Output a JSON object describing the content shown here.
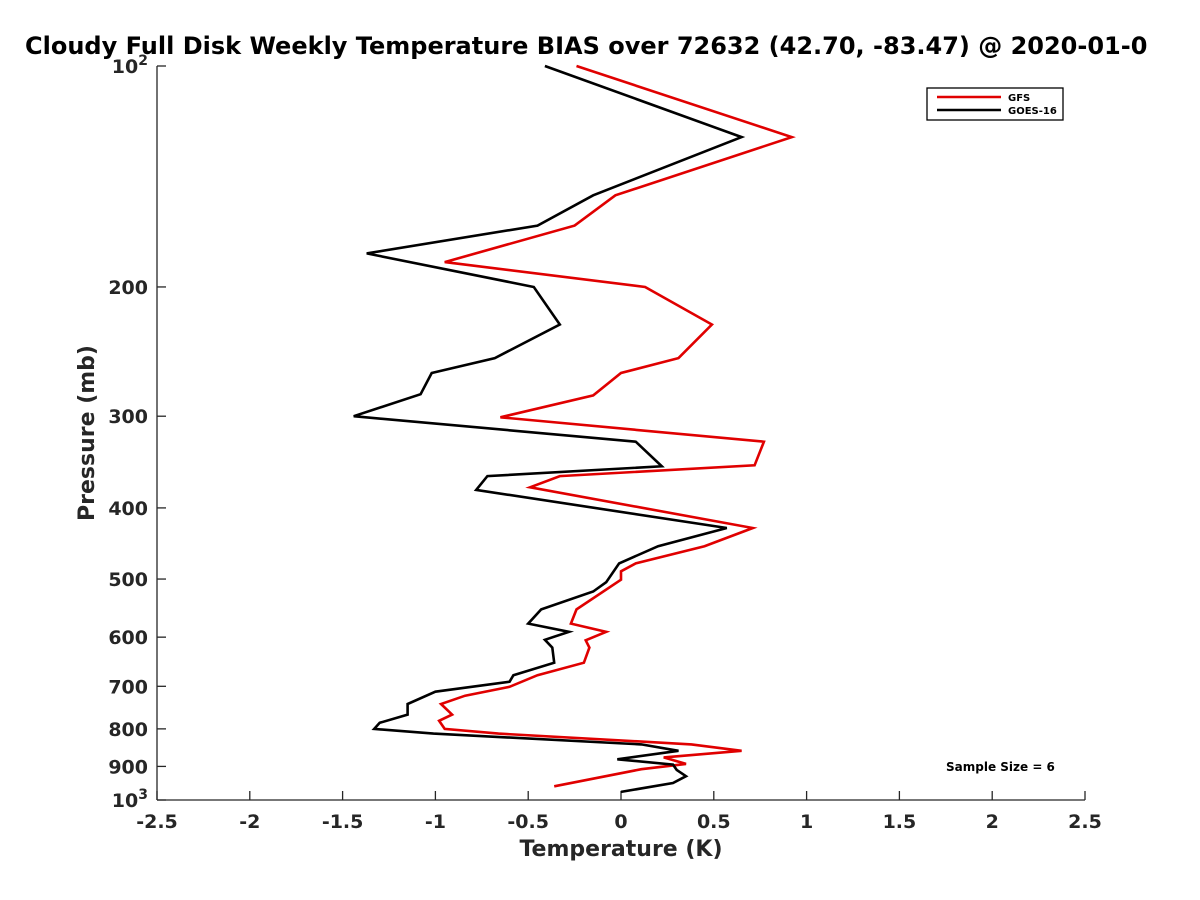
{
  "chart_data": {
    "type": "line",
    "title": "Cloudy Full Disk Weekly Temperature BIAS over 72632 (42.70, -83.47) @ 2020-01-0",
    "xlabel": "Temperature (K)",
    "ylabel": "Pressure (mb)",
    "xlim": [
      -2.5,
      2.5
    ],
    "ylim": [
      100,
      1000
    ],
    "y_scale": "log",
    "y_reversed": true,
    "grid": false,
    "legend_position": "top-right",
    "x_ticks": [
      {
        "value": -2.5,
        "label": "-2.5"
      },
      {
        "value": -2,
        "label": "-2"
      },
      {
        "value": -1.5,
        "label": "-1.5"
      },
      {
        "value": -1,
        "label": "-1"
      },
      {
        "value": -0.5,
        "label": "-0.5"
      },
      {
        "value": 0,
        "label": "0"
      },
      {
        "value": 0.5,
        "label": "0.5"
      },
      {
        "value": 1,
        "label": "1"
      },
      {
        "value": 1.5,
        "label": "1.5"
      },
      {
        "value": 2,
        "label": "2"
      },
      {
        "value": 2.5,
        "label": "2.5"
      }
    ],
    "y_ticks": [
      {
        "value": 100,
        "base": "10",
        "exp": "2"
      },
      {
        "value": 200,
        "label": "200"
      },
      {
        "value": 300,
        "label": "300"
      },
      {
        "value": 400,
        "label": "400"
      },
      {
        "value": 500,
        "label": "500"
      },
      {
        "value": 600,
        "label": "600"
      },
      {
        "value": 700,
        "label": "700"
      },
      {
        "value": 800,
        "label": "800"
      },
      {
        "value": 900,
        "label": "900"
      },
      {
        "value": 1000,
        "base": "10",
        "exp": "3"
      }
    ],
    "series": [
      {
        "name": "GFS",
        "color": "#e00000",
        "points": [
          [
            -0.24,
            100
          ],
          [
            0.92,
            125
          ],
          [
            -0.03,
            150
          ],
          [
            -0.25,
            165
          ],
          [
            -0.95,
            185
          ],
          [
            0.13,
            200
          ],
          [
            0.49,
            225
          ],
          [
            0.31,
            250
          ],
          [
            0.0,
            262
          ],
          [
            -0.15,
            281
          ],
          [
            -0.65,
            301
          ],
          [
            0.77,
            325
          ],
          [
            0.72,
            350
          ],
          [
            -0.33,
            362
          ],
          [
            -0.49,
            375
          ],
          [
            0.71,
            426
          ],
          [
            0.45,
            451
          ],
          [
            0.08,
            476
          ],
          [
            0.0,
            488
          ],
          [
            0.0,
            501
          ],
          [
            -0.24,
            550
          ],
          [
            -0.27,
            575
          ],
          [
            -0.08,
            590
          ],
          [
            -0.19,
            606
          ],
          [
            -0.17,
            620
          ],
          [
            -0.2,
            650
          ],
          [
            -0.45,
            676
          ],
          [
            -0.6,
            701
          ],
          [
            -0.84,
            721
          ],
          [
            -0.97,
            740
          ],
          [
            -0.91,
            765
          ],
          [
            -0.98,
            780
          ],
          [
            -0.95,
            800
          ],
          [
            -0.66,
            812
          ],
          [
            0.38,
            840
          ],
          [
            0.65,
            857
          ],
          [
            0.23,
            875
          ],
          [
            0.35,
            893
          ],
          [
            0.11,
            908
          ],
          [
            -0.36,
            958
          ]
        ]
      },
      {
        "name": "GOES-16",
        "color": "#000000",
        "points": [
          [
            -0.41,
            100
          ],
          [
            0.65,
            125
          ],
          [
            -0.15,
            150
          ],
          [
            -0.45,
            165
          ],
          [
            -1.37,
            180
          ],
          [
            -0.47,
            200
          ],
          [
            -0.33,
            225
          ],
          [
            -0.68,
            250
          ],
          [
            -1.02,
            262
          ],
          [
            -1.08,
            280
          ],
          [
            -1.44,
            300
          ],
          [
            0.08,
            325
          ],
          [
            0.22,
            351
          ],
          [
            -0.72,
            362
          ],
          [
            -0.78,
            378
          ],
          [
            0.57,
            426
          ],
          [
            0.2,
            451
          ],
          [
            -0.01,
            476
          ],
          [
            -0.08,
            505
          ],
          [
            -0.15,
            520
          ],
          [
            -0.43,
            550
          ],
          [
            -0.5,
            575
          ],
          [
            -0.28,
            590
          ],
          [
            -0.41,
            605
          ],
          [
            -0.37,
            620
          ],
          [
            -0.36,
            650
          ],
          [
            -0.58,
            676
          ],
          [
            -0.6,
            690
          ],
          [
            -1.0,
            712
          ],
          [
            -1.15,
            740
          ],
          [
            -1.15,
            765
          ],
          [
            -1.3,
            785
          ],
          [
            -1.33,
            800
          ],
          [
            -1.01,
            812
          ],
          [
            0.11,
            840
          ],
          [
            0.31,
            857
          ],
          [
            -0.02,
            880
          ],
          [
            0.28,
            895
          ],
          [
            0.3,
            910
          ],
          [
            0.35,
            928
          ],
          [
            0.28,
            948
          ],
          [
            0.0,
            975
          ]
        ]
      }
    ],
    "annotations": [
      "Sample Size = 6"
    ]
  }
}
